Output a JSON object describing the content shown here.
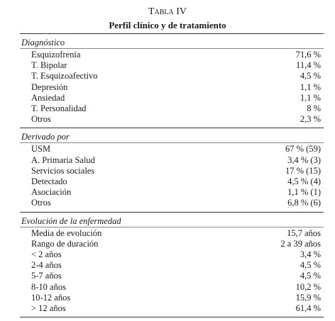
{
  "header": {
    "title": "Tabla IV",
    "subtitle": "Perfil clínico y de tratamiento"
  },
  "sections": [
    {
      "title": "Diagnóstico",
      "rows": [
        [
          "Esquizofrenia",
          "71,6 %"
        ],
        [
          "T. Bipolar",
          "11,4 %"
        ],
        [
          "T. Esquizoafectivo",
          "4,5 %"
        ],
        [
          "Depresión",
          "1,1 %"
        ],
        [
          "Ansiedad",
          "1,1 %"
        ],
        [
          "T. Personalidad",
          "8 %"
        ],
        [
          "Otros",
          "2,3 %"
        ]
      ]
    },
    {
      "title": "Derivado por",
      "rows": [
        [
          "USM",
          "67 % (59)"
        ],
        [
          "A. Primaria Salud",
          "3,4 % (3)"
        ],
        [
          "Servicios sociales",
          "17 % (15)"
        ],
        [
          "Detectado",
          "4,5 % (4)"
        ],
        [
          "Asociación",
          "1,1 % (1)"
        ],
        [
          "Otros",
          "6,8 % (6)"
        ]
      ]
    },
    {
      "title": "Evolución de la enfermedad",
      "rows": [
        [
          "Media de evolución",
          "15,7 años"
        ],
        [
          "Rango de duración",
          "2 a 39 años"
        ],
        [
          "< 2 años",
          "3,4 %"
        ],
        [
          "2-4 años",
          "4,5 %"
        ],
        [
          "5-7 años",
          "4,5 %"
        ],
        [
          "8-10 años",
          "10,2 %"
        ],
        [
          "10-12 años",
          "15,9 %"
        ],
        [
          "> 12 años",
          "61,4 %"
        ]
      ]
    }
  ]
}
